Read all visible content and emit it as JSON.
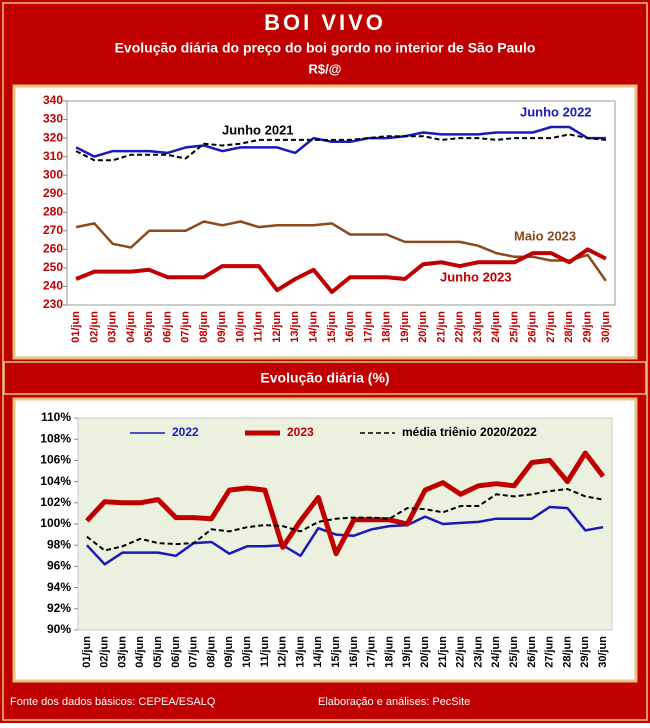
{
  "header": {
    "title": "BOI VIVO"
  },
  "chart_data": [
    {
      "type": "line",
      "title": "Evolução diária do preço do boi gordo no interior de São Paulo",
      "subtitle": "R$/@",
      "categories": [
        "01/jun",
        "02/jun",
        "03/jun",
        "04/jun",
        "05/jun",
        "06/jun",
        "07/jun",
        "08/jun",
        "09/jun",
        "10/jun",
        "11/jun",
        "12/jun",
        "13/jun",
        "14/jun",
        "15/jun",
        "16/jun",
        "17/jun",
        "18/jun",
        "19/jun",
        "20/jun",
        "21/jun",
        "22/jun",
        "23/jun",
        "24/jun",
        "25/jun",
        "26/jun",
        "27/jun",
        "28/jun",
        "29/jun",
        "30/jun"
      ],
      "ylim": [
        230,
        340
      ],
      "yticks": [
        230,
        240,
        250,
        260,
        270,
        280,
        290,
        300,
        310,
        320,
        330,
        340
      ],
      "grid": false,
      "series": [
        {
          "name": "Junho 2022",
          "color": "#1a1ab8",
          "values": [
            315,
            310,
            313,
            313,
            313,
            312,
            315,
            316,
            313,
            315,
            315,
            315,
            312,
            320,
            318,
            318,
            320,
            320,
            321,
            323,
            322,
            322,
            322,
            323,
            323,
            323,
            326,
            326,
            320,
            320
          ]
        },
        {
          "name": "Junho 2021",
          "color": "#000000",
          "dashed": true,
          "values": [
            313,
            308,
            308,
            311,
            311,
            311,
            309,
            317,
            316,
            317,
            319,
            319,
            319,
            319,
            319,
            319,
            320,
            321,
            321,
            321,
            319,
            320,
            320,
            319,
            320,
            320,
            320,
            322,
            320,
            319
          ]
        },
        {
          "name": "Maio 2023",
          "color": "#8b4a1c",
          "values": [
            272,
            274,
            263,
            261,
            270,
            270,
            270,
            275,
            273,
            275,
            272,
            273,
            273,
            273,
            274,
            268,
            268,
            268,
            264,
            264,
            264,
            264,
            262,
            258,
            256,
            256,
            254,
            254,
            257,
            243
          ]
        },
        {
          "name": "Junho 2023",
          "color": "#c00000",
          "width": 4,
          "values": [
            244,
            248,
            248,
            248,
            249,
            245,
            245,
            245,
            251,
            251,
            251,
            238,
            244,
            249,
            237,
            245,
            245,
            245,
            244,
            252,
            253,
            251,
            253,
            253,
            253,
            258,
            258,
            253,
            260,
            255
          ]
        }
      ]
    },
    {
      "type": "line",
      "title": "Evolução diária (%)",
      "categories": [
        "01/jun",
        "02/jun",
        "03/jun",
        "04/jun",
        "05/jun",
        "06/jun",
        "07/jun",
        "08/jun",
        "09/jun",
        "10/jun",
        "11/jun",
        "12/jun",
        "13/jun",
        "14/jun",
        "15/jun",
        "16/jun",
        "17/jun",
        "18/jun",
        "19/jun",
        "20/jun",
        "21/jun",
        "22/jun",
        "23/jun",
        "24/jun",
        "25/jun",
        "26/jun",
        "27/jun",
        "28/jun",
        "29/jun",
        "30/jun"
      ],
      "ylim": [
        90,
        110
      ],
      "yticks": [
        {
          "value": 90,
          "label": "90%"
        },
        {
          "value": 92,
          "label": "92%"
        },
        {
          "value": 94,
          "label": "94%"
        },
        {
          "value": 96,
          "label": "96%"
        },
        {
          "value": 98,
          "label": "98%"
        },
        {
          "value": 100,
          "label": "100%"
        },
        {
          "value": 102,
          "label": "102%"
        },
        {
          "value": 104,
          "label": "104%"
        },
        {
          "value": 106,
          "label": "106%"
        },
        {
          "value": 108,
          "label": "108%"
        },
        {
          "value": 110,
          "label": "110%"
        }
      ],
      "grid": false,
      "series": [
        {
          "name": "2022",
          "color": "#1a1ab8",
          "values": [
            98,
            96.2,
            97.3,
            97.3,
            97.3,
            97,
            98.2,
            98.3,
            97.2,
            97.9,
            97.9,
            98,
            97,
            99.6,
            99,
            98.9,
            99.5,
            99.8,
            99.9,
            100.7,
            100,
            100.1,
            100.2,
            100.5,
            100.5,
            100.5,
            101.6,
            101.5,
            99.4,
            99.7
          ]
        },
        {
          "name": "2023",
          "color": "#c00000",
          "width": 5,
          "values": [
            100.3,
            102.1,
            102,
            102,
            102.3,
            100.6,
            100.6,
            100.5,
            103.2,
            103.4,
            103.2,
            97.8,
            100.3,
            102.5,
            97.2,
            100.4,
            100.4,
            100.4,
            100,
            103.2,
            103.9,
            102.8,
            103.6,
            103.8,
            103.6,
            105.8,
            106,
            104,
            106.7,
            104.5
          ]
        },
        {
          "name": "média triênio 2020/2022",
          "color": "#000000",
          "dashed": true,
          "values": [
            98.8,
            97.5,
            97.9,
            98.6,
            98.2,
            98.1,
            98.2,
            99.5,
            99.3,
            99.7,
            99.9,
            99.8,
            99.3,
            100.2,
            100.5,
            100.6,
            100.6,
            100.5,
            101.5,
            101.4,
            101.1,
            101.7,
            101.7,
            102.8,
            102.6,
            102.8,
            103.1,
            103.3,
            102.6,
            102.3
          ]
        }
      ]
    }
  ],
  "footer": {
    "source": "Fonte dos dados básicos: CEPEA/ESALQ",
    "credit": "Elaboração e análises: PecSite"
  }
}
